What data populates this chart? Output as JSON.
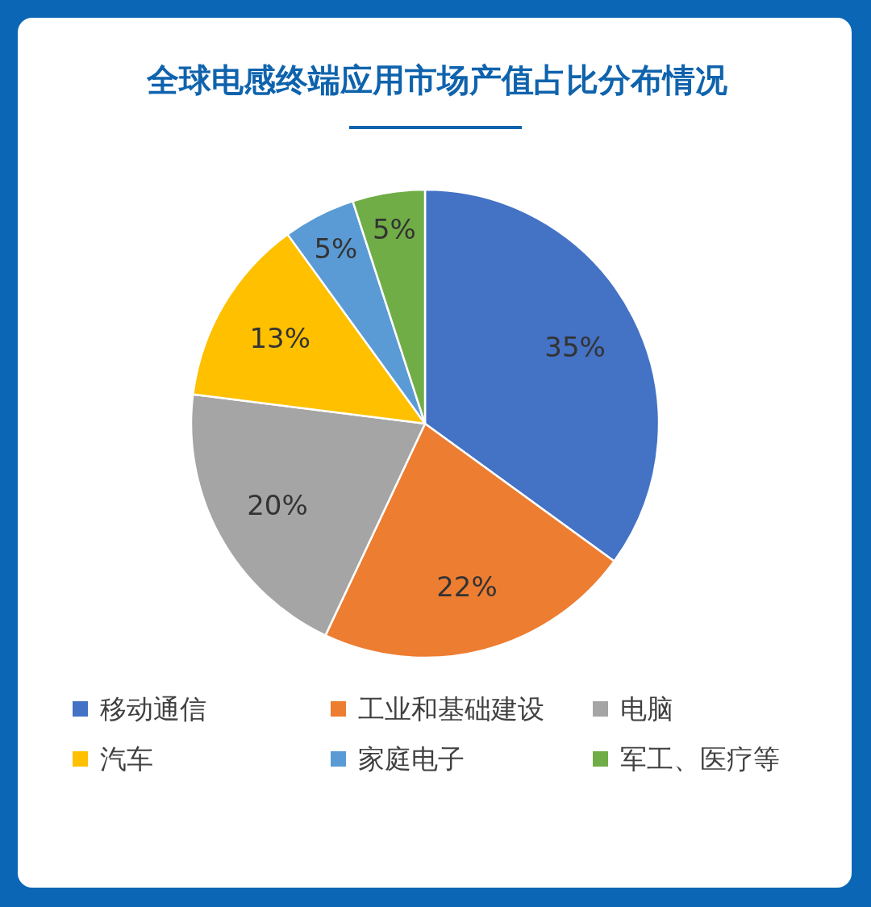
{
  "chart_data": {
    "type": "pie",
    "title": "全球电感终端应用市场产值占比分布情况",
    "categories": [
      "移动通信",
      "工业和基础建设",
      "电脑",
      "汽车",
      "家庭电子",
      "军工、医疗等"
    ],
    "values": [
      35,
      22,
      20,
      13,
      5,
      5
    ],
    "colors": [
      "#4472c4",
      "#ed7d31",
      "#a5a5a5",
      "#ffc000",
      "#5b9bd5",
      "#70ad47"
    ],
    "value_labels": [
      "35%",
      "22%",
      "20%",
      "13%",
      "5%",
      "5%"
    ],
    "legend": "bottom"
  }
}
